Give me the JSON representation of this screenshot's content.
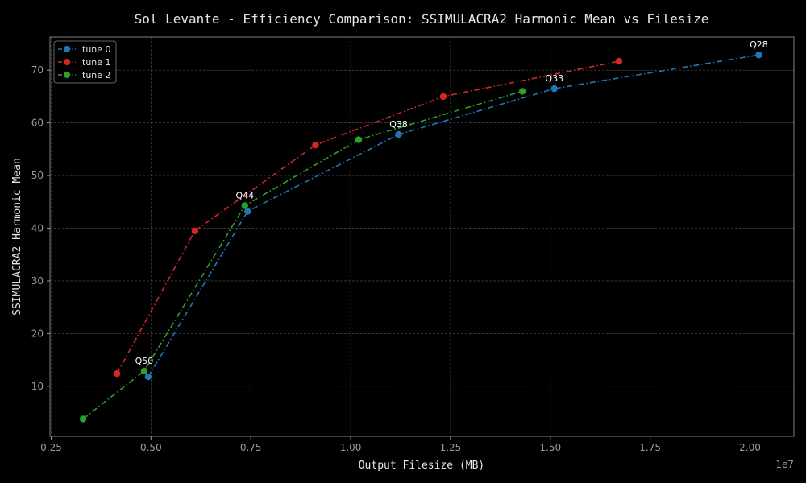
{
  "chart_data": {
    "type": "line",
    "title": "Sol Levante - Efficiency Comparison: SSIMULACRA2 Harmonic Mean vs Filesize",
    "xlabel": "Output Filesize (MB)",
    "ylabel": "SSIMULACRA2 Harmonic Mean",
    "x_scale_label": "1e7",
    "xlim": [
      2470000,
      21100000
    ],
    "ylim": [
      0.5,
      76.3
    ],
    "x_ticks": [
      2500000,
      5000000,
      7500000,
      10000000,
      12500000,
      15000000,
      17500000,
      20000000
    ],
    "x_tick_labels": [
      "0.25",
      "0.50",
      "0.75",
      "1.00",
      "1.25",
      "1.50",
      "1.75",
      "2.00"
    ],
    "y_ticks": [
      10,
      20,
      30,
      40,
      50,
      60,
      70
    ],
    "y_tick_labels": [
      "10",
      "20",
      "30",
      "40",
      "50",
      "60",
      "70"
    ],
    "grid": true,
    "legend_position": "top-left",
    "series": [
      {
        "name": "tune 0",
        "color": "#1f77b4",
        "x": [
          4930000,
          7420000,
          11200000,
          15100000,
          20220000
        ],
        "y": [
          11.8,
          43.2,
          57.8,
          66.5,
          72.9
        ]
      },
      {
        "name": "tune 1",
        "color": "#d62728",
        "x": [
          4150000,
          6100000,
          9120000,
          12320000,
          16720000
        ],
        "y": [
          12.4,
          39.5,
          55.8,
          65.0,
          71.7
        ]
      },
      {
        "name": "tune 2",
        "color": "#2ca02c",
        "x": [
          3300000,
          4830000,
          7350000,
          10200000,
          14300000
        ],
        "y": [
          3.8,
          12.9,
          44.3,
          56.8,
          66.0
        ]
      }
    ],
    "annotations": [
      {
        "text": "Q50",
        "x": 4830000,
        "y": 12.9
      },
      {
        "text": "Q44",
        "x": 7350000,
        "y": 44.3
      },
      {
        "text": "Q38",
        "x": 11200000,
        "y": 57.8
      },
      {
        "text": "Q33",
        "x": 15100000,
        "y": 66.5
      },
      {
        "text": "Q28",
        "x": 20220000,
        "y": 72.9
      }
    ]
  }
}
